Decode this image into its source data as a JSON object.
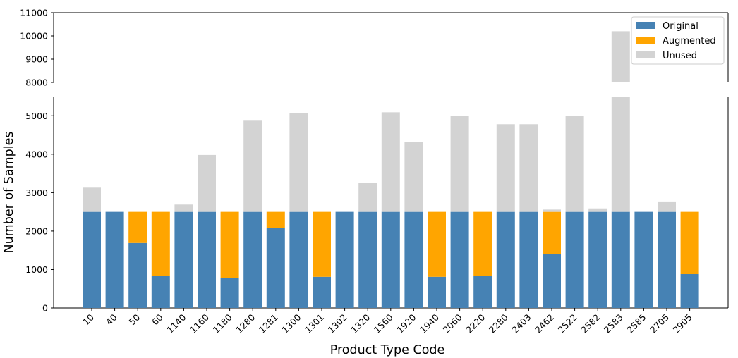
{
  "chart_data": {
    "type": "bar",
    "stacked": true,
    "broken_y_axis": true,
    "xlabel": "Product Type Code",
    "ylabel": "Number of Samples",
    "categories": [
      "10",
      "40",
      "50",
      "60",
      "1140",
      "1160",
      "1180",
      "1280",
      "1281",
      "1300",
      "1301",
      "1302",
      "1320",
      "1560",
      "1920",
      "1940",
      "2060",
      "2220",
      "2280",
      "2403",
      "2462",
      "2522",
      "2582",
      "2583",
      "2585",
      "2705",
      "2905"
    ],
    "series": [
      {
        "name": "Original",
        "color": "#4682b4",
        "values": [
          2500,
          2500,
          1690,
          830,
          2500,
          2500,
          770,
          2500,
          2080,
          2500,
          810,
          2500,
          2500,
          2500,
          2500,
          810,
          2500,
          830,
          2500,
          2500,
          1400,
          2500,
          2500,
          2500,
          2500,
          2500,
          880
        ]
      },
      {
        "name": "Augmented",
        "color": "#ffa500",
        "values": [
          0,
          0,
          810,
          1670,
          0,
          0,
          1730,
          0,
          420,
          0,
          1690,
          0,
          0,
          0,
          0,
          1690,
          0,
          1670,
          0,
          0,
          1100,
          0,
          0,
          0,
          0,
          0,
          1620
        ]
      },
      {
        "name": "Unused",
        "color": "#d3d3d3",
        "values": [
          630,
          0,
          0,
          0,
          190,
          1480,
          0,
          2390,
          0,
          2560,
          0,
          0,
          750,
          2590,
          1820,
          0,
          2500,
          0,
          2280,
          2280,
          60,
          2500,
          90,
          7700,
          0,
          270,
          0
        ]
      }
    ],
    "lower_ylim": [
      0,
      5500
    ],
    "upper_ylim": [
      8000,
      11000
    ],
    "lower_yticks": [
      0,
      1000,
      2000,
      3000,
      4000,
      5000
    ],
    "upper_yticks": [
      8000,
      9000,
      10000,
      11000
    ],
    "legend_position": "top-right",
    "grid": false
  }
}
